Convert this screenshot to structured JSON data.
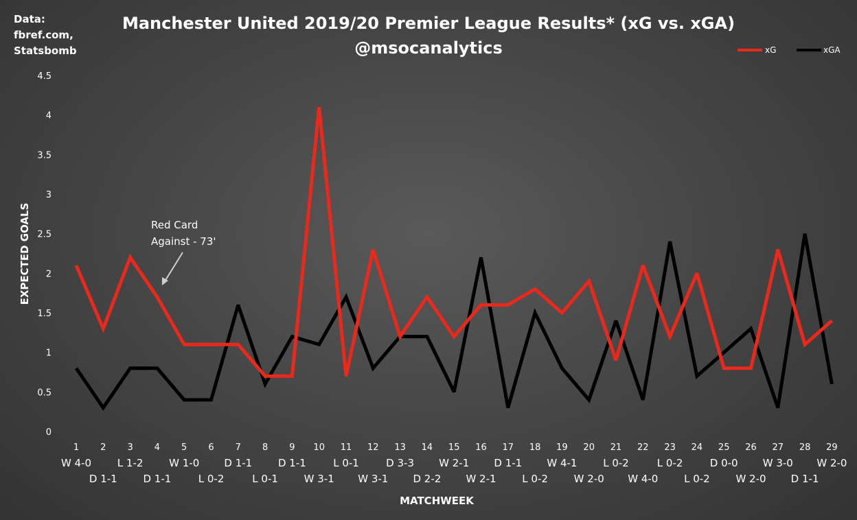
{
  "chart_data": {
    "type": "line",
    "title": "Manchester United 2019/20 Premier League Results* (xG vs. xGA)",
    "subtitle": "@msocanalytics",
    "source_lines": [
      "Data:",
      "fbref.com,",
      "Statsbomb"
    ],
    "xlabel": "MATCHWEEK",
    "ylabel": "EXPECTED GOALS",
    "ylim": [
      0,
      4.5
    ],
    "yticks": [
      "0",
      "0.5",
      "1",
      "1.5",
      "2",
      "2.5",
      "3",
      "3.5",
      "4",
      "4.5"
    ],
    "grid": false,
    "legend_position": "top-right",
    "categories": [
      "1",
      "2",
      "3",
      "4",
      "5",
      "6",
      "7",
      "8",
      "9",
      "10",
      "11",
      "12",
      "13",
      "14",
      "15",
      "16",
      "17",
      "18",
      "19",
      "20",
      "21",
      "22",
      "23",
      "24",
      "25",
      "26",
      "27",
      "28",
      "29"
    ],
    "results": [
      "W 4-0",
      "D 1-1",
      "L 1-2",
      "D 1-1",
      "W 1-0",
      "L 0-2",
      "D 1-1",
      "L 0-1",
      "D 1-1",
      "W 3-1",
      "L 0-1",
      "W 3-1",
      "D 3-3",
      "D 2-2",
      "W 2-1",
      "W 2-1",
      "D 1-1",
      "L 0-2",
      "W 4-1",
      "W 2-0",
      "L 0-2",
      "W 4-0",
      "L 0-2",
      "L 0-2",
      "D 0-0",
      "W 2-0",
      "W 3-0",
      "D 1-1",
      "W 2-0"
    ],
    "series": [
      {
        "name": "xG",
        "color": "#e8291c",
        "values": [
          2.1,
          1.3,
          2.2,
          1.7,
          1.1,
          1.1,
          1.1,
          0.7,
          0.7,
          4.1,
          0.7,
          2.3,
          1.2,
          1.7,
          1.2,
          1.6,
          1.6,
          1.8,
          1.5,
          1.9,
          0.9,
          2.1,
          1.2,
          2.0,
          0.8,
          0.8,
          2.3,
          1.1,
          1.4
        ]
      },
      {
        "name": "xGA",
        "color": "#000000",
        "values": [
          0.8,
          0.3,
          0.8,
          0.8,
          0.4,
          0.4,
          1.6,
          0.6,
          1.2,
          1.1,
          1.7,
          0.8,
          1.2,
          1.2,
          0.5,
          2.2,
          0.3,
          1.5,
          0.8,
          0.4,
          1.4,
          0.4,
          2.4,
          0.7,
          1.0,
          1.3,
          0.3,
          2.5,
          0.6
        ]
      }
    ],
    "annotation": {
      "lines": [
        "Red Card",
        "Against - 73'"
      ],
      "matchweek": 4
    }
  }
}
